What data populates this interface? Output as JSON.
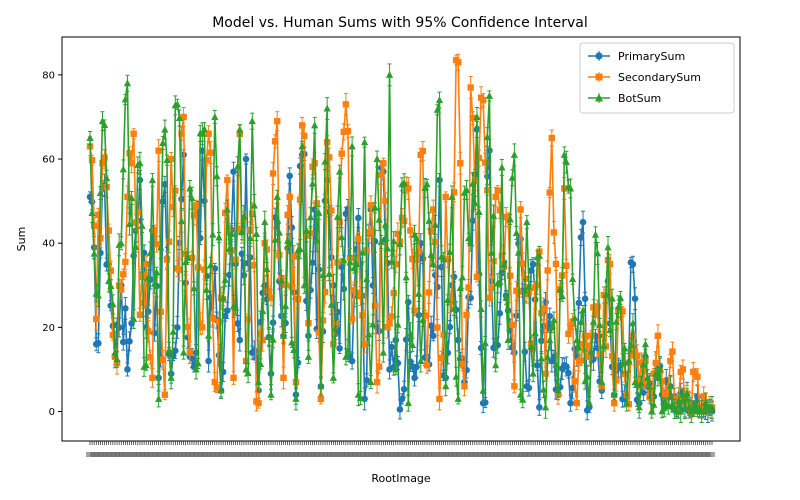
{
  "chart_data": {
    "type": "line",
    "title": "Model vs. Human Sums with 95% Confidence Interval",
    "xlabel": "RootImage",
    "ylabel": "Sum",
    "ylim": [
      -7,
      89
    ],
    "y_ticks": [
      0,
      20,
      40,
      60,
      80
    ],
    "grid": false,
    "legend_position": "top-right",
    "legend": [
      "PrimarySum",
      "SecondarySum",
      "BotSum"
    ],
    "x_category_count": 300,
    "x_tick_labels_note": "x tick labels are overlapping and illegible",
    "error_bars": true,
    "series": [
      {
        "name": "PrimarySum",
        "color": "#1f77b4",
        "marker": "circle",
        "anchors": [
          [
            0,
            51
          ],
          [
            3,
            16
          ],
          [
            6,
            53
          ],
          [
            9,
            35
          ],
          [
            12,
            13
          ],
          [
            15,
            30
          ],
          [
            18,
            10
          ],
          [
            21,
            37
          ],
          [
            24,
            55
          ],
          [
            27,
            20
          ],
          [
            30,
            43
          ],
          [
            33,
            8
          ],
          [
            36,
            54
          ],
          [
            39,
            9
          ],
          [
            42,
            20
          ],
          [
            45,
            61
          ],
          [
            48,
            13
          ],
          [
            51,
            14
          ],
          [
            54,
            62
          ],
          [
            57,
            12
          ],
          [
            60,
            34
          ],
          [
            63,
            5
          ],
          [
            66,
            24
          ],
          [
            69,
            57
          ],
          [
            72,
            17
          ],
          [
            75,
            60
          ],
          [
            78,
            14
          ],
          [
            81,
            5
          ],
          [
            84,
            30
          ],
          [
            87,
            9
          ],
          [
            90,
            45
          ],
          [
            93,
            18
          ],
          [
            96,
            56
          ],
          [
            99,
            4
          ],
          [
            102,
            61
          ],
          [
            105,
            18
          ],
          [
            108,
            48
          ],
          [
            111,
            6
          ],
          [
            114,
            55
          ],
          [
            117,
            30
          ],
          [
            120,
            15
          ],
          [
            123,
            47
          ],
          [
            126,
            12
          ],
          [
            129,
            46
          ],
          [
            132,
            3
          ],
          [
            135,
            48
          ],
          [
            138,
            20
          ],
          [
            141,
            57
          ],
          [
            144,
            10
          ],
          [
            147,
            17
          ],
          [
            150,
            3
          ],
          [
            153,
            26
          ],
          [
            156,
            8
          ],
          [
            159,
            40
          ],
          [
            162,
            13
          ],
          [
            165,
            18
          ],
          [
            168,
            55
          ],
          [
            171,
            8
          ],
          [
            174,
            30
          ],
          [
            177,
            17
          ],
          [
            180,
            7
          ],
          [
            183,
            27
          ],
          [
            186,
            67
          ],
          [
            189,
            2
          ],
          [
            192,
            62
          ],
          [
            195,
            16
          ],
          [
            198,
            33
          ],
          [
            201,
            24
          ],
          [
            204,
            14
          ],
          [
            207,
            41
          ],
          [
            210,
            6
          ],
          [
            213,
            35
          ],
          [
            216,
            1
          ],
          [
            219,
            26
          ],
          [
            222,
            12
          ],
          [
            225,
            4
          ],
          [
            228,
            11
          ],
          [
            231,
            2
          ],
          [
            234,
            13
          ],
          [
            237,
            45
          ],
          [
            240,
            1
          ],
          [
            243,
            18
          ],
          [
            246,
            5
          ],
          [
            249,
            31
          ],
          [
            252,
            4
          ],
          [
            255,
            11
          ],
          [
            258,
            3
          ],
          [
            261,
            35
          ],
          [
            264,
            2
          ],
          [
            267,
            13
          ],
          [
            270,
            4
          ],
          [
            273,
            9
          ],
          [
            276,
            2
          ],
          [
            279,
            6
          ],
          [
            282,
            1
          ],
          [
            285,
            4
          ],
          [
            288,
            0
          ],
          [
            291,
            2
          ],
          [
            294,
            1
          ],
          [
            297,
            0
          ]
        ]
      },
      {
        "name": "SecondarySum",
        "color": "#ff7f0e",
        "marker": "square",
        "anchors": [
          [
            0,
            63
          ],
          [
            3,
            22
          ],
          [
            6,
            59
          ],
          [
            9,
            43
          ],
          [
            12,
            13
          ],
          [
            15,
            29
          ],
          [
            18,
            51
          ],
          [
            21,
            66
          ],
          [
            24,
            23
          ],
          [
            27,
            35
          ],
          [
            30,
            8
          ],
          [
            33,
            62
          ],
          [
            36,
            4
          ],
          [
            39,
            60
          ],
          [
            42,
            34
          ],
          [
            45,
            70
          ],
          [
            48,
            14
          ],
          [
            51,
            49
          ],
          [
            54,
            20
          ],
          [
            57,
            66
          ],
          [
            60,
            7
          ],
          [
            63,
            27
          ],
          [
            66,
            55
          ],
          [
            69,
            8
          ],
          [
            72,
            66
          ],
          [
            75,
            12
          ],
          [
            78,
            47
          ],
          [
            81,
            2
          ],
          [
            84,
            40
          ],
          [
            87,
            27
          ],
          [
            90,
            69
          ],
          [
            93,
            8
          ],
          [
            96,
            51
          ],
          [
            99,
            7
          ],
          [
            102,
            68
          ],
          [
            105,
            21
          ],
          [
            108,
            59
          ],
          [
            111,
            3
          ],
          [
            114,
            64
          ],
          [
            117,
            16
          ],
          [
            120,
            45
          ],
          [
            123,
            73
          ],
          [
            126,
            22
          ],
          [
            129,
            41
          ],
          [
            132,
            16
          ],
          [
            135,
            49
          ],
          [
            138,
            7
          ],
          [
            141,
            59
          ],
          [
            144,
            21
          ],
          [
            147,
            35
          ],
          [
            150,
            46
          ],
          [
            153,
            53
          ],
          [
            156,
            24
          ],
          [
            159,
            61
          ],
          [
            162,
            11
          ],
          [
            165,
            48
          ],
          [
            168,
            3
          ],
          [
            171,
            51
          ],
          [
            174,
            26
          ],
          [
            177,
            83
          ],
          [
            180,
            6
          ],
          [
            183,
            77
          ],
          [
            186,
            32
          ],
          [
            189,
            74
          ],
          [
            192,
            27
          ],
          [
            195,
            51
          ],
          [
            198,
            37
          ],
          [
            201,
            46
          ],
          [
            204,
            6
          ],
          [
            207,
            48
          ],
          [
            210,
            28
          ],
          [
            213,
            15
          ],
          [
            216,
            38
          ],
          [
            219,
            9
          ],
          [
            222,
            65
          ],
          [
            225,
            4
          ],
          [
            228,
            53
          ],
          [
            231,
            20
          ],
          [
            234,
            2
          ],
          [
            237,
            16
          ],
          [
            240,
            13
          ],
          [
            243,
            23
          ],
          [
            246,
            6
          ],
          [
            249,
            36
          ],
          [
            252,
            2
          ],
          [
            255,
            24
          ],
          [
            258,
            4
          ],
          [
            261,
            18
          ],
          [
            264,
            7
          ],
          [
            267,
            12
          ],
          [
            270,
            3
          ],
          [
            273,
            18
          ],
          [
            276,
            4
          ],
          [
            279,
            12
          ],
          [
            282,
            1
          ],
          [
            285,
            10
          ],
          [
            288,
            2
          ],
          [
            291,
            9
          ],
          [
            294,
            0
          ],
          [
            297,
            1
          ]
        ]
      },
      {
        "name": "BotSum",
        "color": "#2ca02c",
        "marker": "triangle",
        "anchors": [
          [
            0,
            65
          ],
          [
            3,
            28
          ],
          [
            6,
            69
          ],
          [
            9,
            31
          ],
          [
            12,
            14
          ],
          [
            15,
            40
          ],
          [
            18,
            78
          ],
          [
            21,
            22
          ],
          [
            24,
            59
          ],
          [
            27,
            11
          ],
          [
            30,
            55
          ],
          [
            33,
            3
          ],
          [
            36,
            67
          ],
          [
            39,
            8
          ],
          [
            42,
            73
          ],
          [
            45,
            14
          ],
          [
            48,
            53
          ],
          [
            51,
            10
          ],
          [
            54,
            66
          ],
          [
            57,
            18
          ],
          [
            60,
            70
          ],
          [
            63,
            5
          ],
          [
            66,
            48
          ],
          [
            69,
            25
          ],
          [
            72,
            67
          ],
          [
            75,
            10
          ],
          [
            78,
            69
          ],
          [
            81,
            7
          ],
          [
            84,
            45
          ],
          [
            87,
            4
          ],
          [
            90,
            51
          ],
          [
            93,
            18
          ],
          [
            96,
            40
          ],
          [
            99,
            3
          ],
          [
            102,
            63
          ],
          [
            105,
            13
          ],
          [
            108,
            68
          ],
          [
            111,
            6
          ],
          [
            114,
            72
          ],
          [
            117,
            8
          ],
          [
            120,
            57
          ],
          [
            123,
            13
          ],
          [
            126,
            63
          ],
          [
            129,
            4
          ],
          [
            132,
            64
          ],
          [
            135,
            7
          ],
          [
            138,
            60
          ],
          [
            141,
            14
          ],
          [
            144,
            80
          ],
          [
            147,
            10
          ],
          [
            150,
            54
          ],
          [
            153,
            2
          ],
          [
            156,
            42
          ],
          [
            159,
            12
          ],
          [
            162,
            54
          ],
          [
            165,
            35
          ],
          [
            168,
            74
          ],
          [
            171,
            6
          ],
          [
            174,
            51
          ],
          [
            177,
            3
          ],
          [
            180,
            52
          ],
          [
            183,
            40
          ],
          [
            186,
            70
          ],
          [
            189,
            5
          ],
          [
            192,
            75
          ],
          [
            195,
            11
          ],
          [
            198,
            58
          ],
          [
            201,
            17
          ],
          [
            204,
            61
          ],
          [
            207,
            4
          ],
          [
            210,
            45
          ],
          [
            213,
            9
          ],
          [
            216,
            37
          ],
          [
            219,
            1
          ],
          [
            222,
            20
          ],
          [
            225,
            5
          ],
          [
            228,
            61
          ],
          [
            231,
            53
          ],
          [
            234,
            17
          ],
          [
            237,
            24
          ],
          [
            240,
            2
          ],
          [
            243,
            42
          ],
          [
            246,
            7
          ],
          [
            249,
            39
          ],
          [
            252,
            4
          ],
          [
            255,
            27
          ],
          [
            258,
            2
          ],
          [
            261,
            21
          ],
          [
            264,
            1
          ],
          [
            267,
            16
          ],
          [
            270,
            0
          ],
          [
            273,
            8
          ],
          [
            276,
            1
          ],
          [
            279,
            6
          ],
          [
            282,
            0
          ],
          [
            285,
            4
          ],
          [
            288,
            1
          ],
          [
            291,
            2
          ],
          [
            294,
            0
          ],
          [
            297,
            1
          ]
        ]
      }
    ]
  }
}
